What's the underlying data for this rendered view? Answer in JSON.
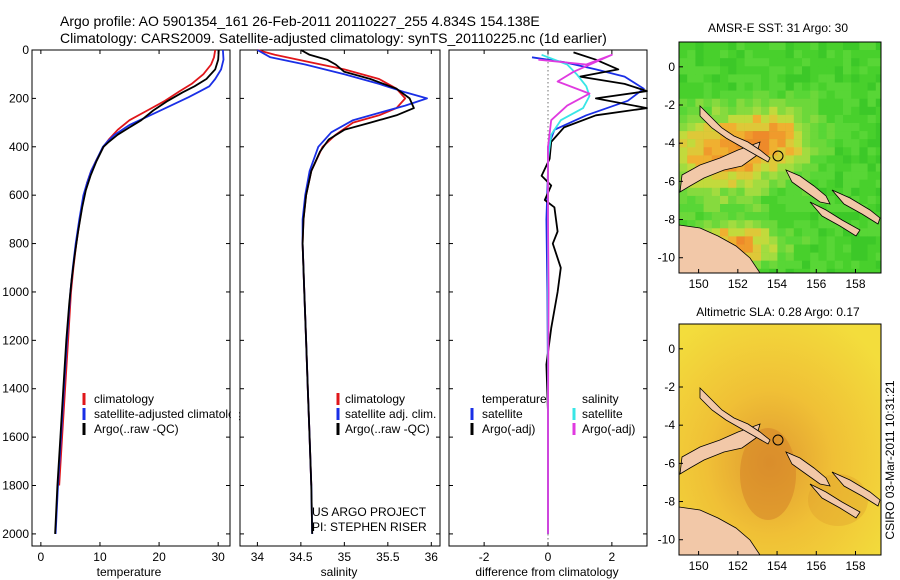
{
  "header": {
    "line1": "Argo profile: AO 5901354_161 26-Feb-2011 20110227_255 4.834S 154.138E",
    "line2": "Climatology: CARS2009. Satellite-adjusted climatology: synTS_20110225.nc (1d earlier)"
  },
  "colors": {
    "climatology": "#e0161a",
    "satellite": "#1a2fe6",
    "argo": "#000000",
    "salinity_satellite": "#38e6e6",
    "salinity_argo": "#e03ae0"
  },
  "chart_data": [
    {
      "type": "line",
      "id": "temperature",
      "xlabel": "temperature",
      "xlim": [
        -1.5,
        32
      ],
      "ylim": [
        2050,
        0
      ],
      "xticks": [
        0,
        10,
        20,
        30
      ],
      "yticks": [
        0,
        200,
        400,
        600,
        800,
        1000,
        1200,
        1400,
        1600,
        1800,
        2000
      ],
      "legend": [
        "climatology",
        "satellite-adjusted climatology",
        "Argo(..raw -QC)"
      ],
      "series": [
        {
          "name": "climatology",
          "color_key": "climatology",
          "points": [
            [
              29.5,
              0
            ],
            [
              29.3,
              30
            ],
            [
              28.8,
              60
            ],
            [
              27.5,
              100
            ],
            [
              25.5,
              140
            ],
            [
              23.5,
              170
            ],
            [
              21,
              210
            ],
            [
              18,
              250
            ],
            [
              15,
              290
            ],
            [
              13,
              330
            ],
            [
              11.5,
              370
            ],
            [
              10.6,
              400
            ],
            [
              9.5,
              450
            ],
            [
              8.5,
              500
            ],
            [
              7.8,
              550
            ],
            [
              7.3,
              600
            ],
            [
              6.6,
              700
            ],
            [
              6.0,
              800
            ],
            [
              5.5,
              900
            ],
            [
              5.1,
              1000
            ],
            [
              4.6,
              1200
            ],
            [
              4.1,
              1400
            ],
            [
              3.6,
              1600
            ],
            [
              3.1,
              1800
            ]
          ]
        },
        {
          "name": "satellite",
          "color_key": "satellite",
          "points": [
            [
              30.8,
              0
            ],
            [
              30.9,
              40
            ],
            [
              30.5,
              80
            ],
            [
              29.5,
              120
            ],
            [
              28.5,
              150
            ],
            [
              27,
              170
            ],
            [
              25,
              195
            ],
            [
              22,
              230
            ],
            [
              18.5,
              270
            ],
            [
              15,
              310
            ],
            [
              12.5,
              350
            ],
            [
              11.2,
              380
            ],
            [
              10.5,
              400
            ],
            [
              9.5,
              450
            ],
            [
              8.5,
              500
            ],
            [
              7.8,
              550
            ],
            [
              7.2,
              600
            ],
            [
              6.5,
              700
            ],
            [
              5.9,
              800
            ],
            [
              5.4,
              900
            ],
            [
              5.0,
              1000
            ],
            [
              4.4,
              1200
            ],
            [
              3.9,
              1400
            ],
            [
              3.4,
              1600
            ],
            [
              2.9,
              1800
            ],
            [
              2.5,
              2000
            ]
          ]
        },
        {
          "name": "Argo",
          "color_key": "argo",
          "points": [
            [
              30.1,
              0
            ],
            [
              30.0,
              40
            ],
            [
              29.5,
              80
            ],
            [
              28,
              120
            ],
            [
              26,
              150
            ],
            [
              24,
              175
            ],
            [
              21.5,
              210
            ],
            [
              19,
              250
            ],
            [
              17,
              290
            ],
            [
              15,
              320
            ],
            [
              13,
              350
            ],
            [
              11.5,
              380
            ],
            [
              10.6,
              400
            ],
            [
              9.4,
              460
            ],
            [
              8.4,
              520
            ],
            [
              7.6,
              580
            ],
            [
              7.0,
              650
            ],
            [
              6.3,
              750
            ],
            [
              5.7,
              850
            ],
            [
              5.2,
              950
            ],
            [
              4.8,
              1050
            ],
            [
              4.3,
              1200
            ],
            [
              3.8,
              1400
            ],
            [
              3.3,
              1600
            ],
            [
              2.8,
              1800
            ],
            [
              2.4,
              2000
            ]
          ]
        }
      ]
    },
    {
      "type": "line",
      "id": "salinity",
      "xlabel": "salinity",
      "xlim": [
        33.8,
        36.1
      ],
      "ylim": [
        2050,
        0
      ],
      "xticks": [
        34,
        34.5,
        35,
        35.5,
        36
      ],
      "legend": [
        "climatology",
        "satellite adj. clim.",
        "Argo(..raw -QC)"
      ],
      "series": [
        {
          "name": "climatology",
          "color_key": "climatology",
          "points": [
            [
              34.0,
              0
            ],
            [
              34.2,
              20
            ],
            [
              34.6,
              50
            ],
            [
              35.0,
              80
            ],
            [
              35.4,
              120
            ],
            [
              35.6,
              160
            ],
            [
              35.7,
              200
            ],
            [
              35.6,
              240
            ],
            [
              35.4,
              270
            ],
            [
              35.1,
              300
            ],
            [
              34.9,
              350
            ],
            [
              34.75,
              400
            ],
            [
              34.62,
              500
            ],
            [
              34.56,
              600
            ],
            [
              34.53,
              700
            ],
            [
              34.52,
              800
            ],
            [
              34.54,
              1000
            ],
            [
              34.56,
              1200
            ],
            [
              34.58,
              1400
            ],
            [
              34.6,
              1600
            ],
            [
              34.62,
              1800
            ]
          ]
        },
        {
          "name": "satellite",
          "color_key": "satellite",
          "points": [
            [
              34.0,
              0
            ],
            [
              34.15,
              30
            ],
            [
              34.55,
              60
            ],
            [
              35.0,
              100
            ],
            [
              35.4,
              140
            ],
            [
              35.7,
              175
            ],
            [
              35.95,
              200
            ],
            [
              35.7,
              230
            ],
            [
              35.4,
              260
            ],
            [
              35.1,
              290
            ],
            [
              34.85,
              340
            ],
            [
              34.7,
              400
            ],
            [
              34.6,
              500
            ],
            [
              34.55,
              600
            ],
            [
              34.52,
              700
            ],
            [
              34.52,
              800
            ],
            [
              34.54,
              1000
            ],
            [
              34.56,
              1200
            ],
            [
              34.58,
              1400
            ],
            [
              34.6,
              1600
            ],
            [
              34.62,
              1800
            ],
            [
              34.63,
              2000
            ]
          ]
        },
        {
          "name": "Argo",
          "color_key": "argo",
          "points": [
            [
              34.5,
              0
            ],
            [
              34.6,
              20
            ],
            [
              34.8,
              40
            ],
            [
              34.9,
              60
            ],
            [
              35.0,
              90
            ],
            [
              35.3,
              120
            ],
            [
              35.6,
              160
            ],
            [
              35.75,
              200
            ],
            [
              35.8,
              240
            ],
            [
              35.6,
              270
            ],
            [
              35.3,
              300
            ],
            [
              35.0,
              330
            ],
            [
              34.82,
              370
            ],
            [
              34.72,
              420
            ],
            [
              34.62,
              500
            ],
            [
              34.56,
              600
            ],
            [
              34.53,
              700
            ],
            [
              34.52,
              800
            ],
            [
              34.54,
              1000
            ],
            [
              34.56,
              1200
            ],
            [
              34.58,
              1400
            ],
            [
              34.6,
              1600
            ],
            [
              34.62,
              1800
            ],
            [
              34.63,
              2000
            ]
          ]
        }
      ]
    },
    {
      "type": "line",
      "id": "difference",
      "xlabel": "difference from climatology",
      "xlim": [
        -3.1,
        3.1
      ],
      "ylim": [
        2050,
        0
      ],
      "xticks": [
        -2,
        0,
        2
      ],
      "legend_temperature_title": "temperature",
      "legend_salinity_title": "salinity",
      "legend_temperature": [
        "satellite",
        "Argo(-adj)"
      ],
      "legend_salinity": [
        "satellite",
        "Argo(-adj)"
      ],
      "series": [
        {
          "name": "temperature satellite",
          "color_key": "satellite",
          "points": [
            [
              -0.5,
              30
            ],
            [
              0.5,
              50
            ],
            [
              1.5,
              80
            ],
            [
              2.4,
              110
            ],
            [
              3.0,
              160
            ],
            [
              2.5,
              210
            ],
            [
              1.2,
              270
            ],
            [
              0.2,
              330
            ],
            [
              0.0,
              400
            ],
            [
              0.0,
              500
            ],
            [
              -0.05,
              700
            ],
            [
              -0.02,
              1000
            ],
            [
              0.0,
              1400
            ],
            [
              0.0,
              1800
            ],
            [
              0.0,
              2000
            ]
          ]
        },
        {
          "name": "temperature Argo(-adj)",
          "color_key": "argo",
          "points": [
            [
              0.8,
              10
            ],
            [
              1.5,
              40
            ],
            [
              2.2,
              80
            ],
            [
              1.0,
              110
            ],
            [
              2.4,
              140
            ],
            [
              3.1,
              170
            ],
            [
              1.5,
              200
            ],
            [
              3.1,
              240
            ],
            [
              1.5,
              270
            ],
            [
              0.5,
              320
            ],
            [
              0.1,
              380
            ],
            [
              0.05,
              450
            ],
            [
              -0.2,
              520
            ],
            [
              0.1,
              560
            ],
            [
              -0.1,
              620
            ],
            [
              0.2,
              650
            ],
            [
              0.25,
              700
            ],
            [
              0.3,
              750
            ],
            [
              0.15,
              800
            ],
            [
              0.4,
              900
            ],
            [
              0.3,
              1000
            ],
            [
              0.1,
              1150
            ],
            [
              -0.05,
              1300
            ],
            [
              0.0,
              1500
            ],
            [
              0.0,
              1800
            ],
            [
              0.0,
              2000
            ]
          ]
        },
        {
          "name": "salinity satellite",
          "color_key": "salinity_satellite",
          "points": [
            [
              -0.2,
              20
            ],
            [
              0.6,
              60
            ],
            [
              0.9,
              100
            ],
            [
              1.2,
              150
            ],
            [
              1.3,
              190
            ],
            [
              1.1,
              240
            ],
            [
              0.4,
              290
            ],
            [
              0.1,
              350
            ],
            [
              0.0,
              450
            ],
            [
              0.0,
              700
            ],
            [
              0.0,
              1000
            ],
            [
              0.0,
              1500
            ],
            [
              0.0,
              2000
            ]
          ]
        },
        {
          "name": "salinity Argo(-adj)",
          "color_key": "salinity_argo",
          "points": [
            [
              -0.3,
              40
            ],
            [
              1.2,
              60
            ],
            [
              2.0,
              20
            ],
            [
              0.8,
              90
            ],
            [
              0.3,
              130
            ],
            [
              1.3,
              180
            ],
            [
              0.6,
              230
            ],
            [
              0.1,
              290
            ],
            [
              0.0,
              400
            ],
            [
              0.0,
              700
            ],
            [
              0.02,
              1000
            ],
            [
              0.0,
              1500
            ],
            [
              0.0,
              2000
            ]
          ]
        }
      ]
    },
    {
      "type": "heatmap",
      "id": "sst-map",
      "title": "AMSR-E SST: 31 Argo: 30",
      "xlim": [
        149,
        159.3
      ],
      "ylim": [
        -10.8,
        1.3
      ],
      "xticks": [
        150,
        152,
        154,
        156,
        158
      ],
      "yticks": [
        0,
        -2,
        -4,
        -6,
        -8,
        -10
      ],
      "argo_position": [
        154.138,
        -4.834
      ]
    },
    {
      "type": "heatmap",
      "id": "sla-map",
      "title": "Altimetric SLA: 0.28 Argo: 0.17",
      "xlim": [
        149,
        159.3
      ],
      "ylim": [
        -10.8,
        1.3
      ],
      "xticks": [
        150,
        152,
        154,
        156,
        158
      ],
      "yticks": [
        0,
        -2,
        -4,
        -6,
        -8,
        -10
      ],
      "argo_position": [
        154.138,
        -4.834
      ]
    }
  ],
  "annotations": {
    "project_line1": "US ARGO PROJECT",
    "project_line2": "PI: STEPHEN RISER",
    "credit": "CSIRO 03-Mar-2011 10:31:21"
  }
}
